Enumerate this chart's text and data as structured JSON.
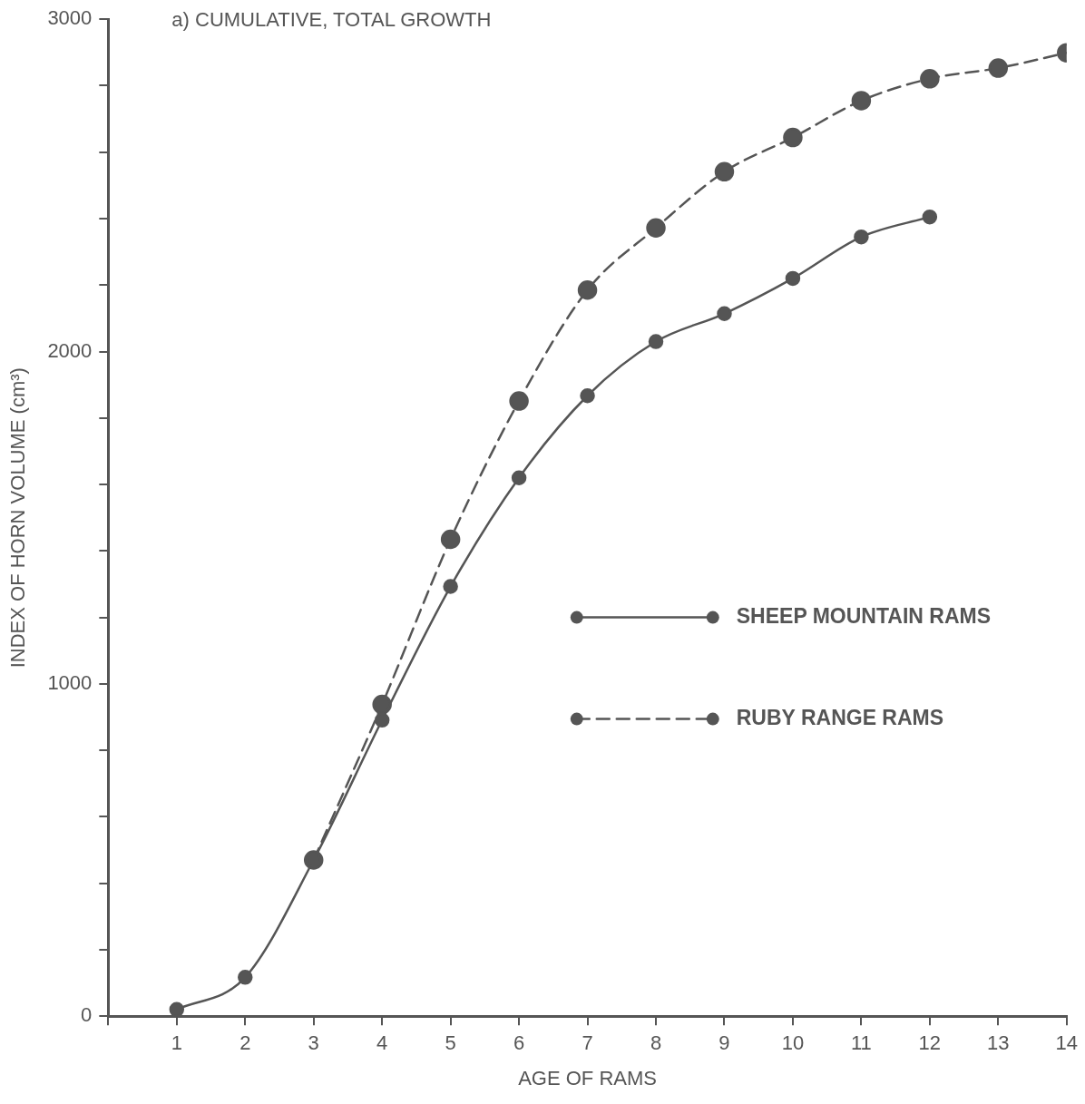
{
  "chart_data": {
    "type": "line",
    "title": "a) CUMULATIVE, TOTAL GROWTH",
    "xlabel": "AGE OF RAMS",
    "ylabel": "INDEX OF HORN VOLUME (cm³)",
    "x": [
      1,
      2,
      3,
      4,
      5,
      6,
      7,
      8,
      9,
      10,
      11,
      12,
      13,
      14
    ],
    "series": [
      {
        "name": "SHEEP MOUNTAIN RAMS",
        "color": "#555555",
        "line_style": "solid",
        "values": [
          20,
          117,
          470,
          891,
          1293,
          1620,
          1867,
          2030,
          2114,
          2220,
          2345,
          2405,
          null,
          null
        ]
      },
      {
        "name": "RUBY RANGE RAMS",
        "color": "#555555",
        "line_style": "dashed",
        "values": [
          null,
          null,
          470,
          938,
          1435,
          1851,
          2185,
          2372,
          2541,
          2644,
          2755,
          2821,
          2853,
          2899
        ]
      }
    ],
    "xlim": [
      0,
      14
    ],
    "xticks": [
      {
        "value": 0,
        "label": null
      },
      1,
      2,
      3,
      4,
      5,
      6,
      7,
      8,
      9,
      10,
      11,
      12,
      13,
      14
    ],
    "ylim": [
      0,
      3000
    ],
    "yticks": [
      0,
      {
        "value": 200,
        "label": null
      },
      {
        "value": 400,
        "label": null
      },
      {
        "value": 600,
        "label": null
      },
      {
        "value": 800,
        "label": null
      },
      1000,
      {
        "value": 1200,
        "label": null
      },
      {
        "value": 1400,
        "label": null
      },
      {
        "value": 1600,
        "label": null
      },
      {
        "value": 1800,
        "label": null
      },
      2000,
      {
        "value": 2200,
        "label": null
      },
      {
        "value": 2400,
        "label": null
      },
      {
        "value": 2600,
        "label": null
      },
      {
        "value": 2800,
        "label": null
      },
      3000
    ],
    "grid": false,
    "legend": "right",
    "marker": "circle"
  }
}
